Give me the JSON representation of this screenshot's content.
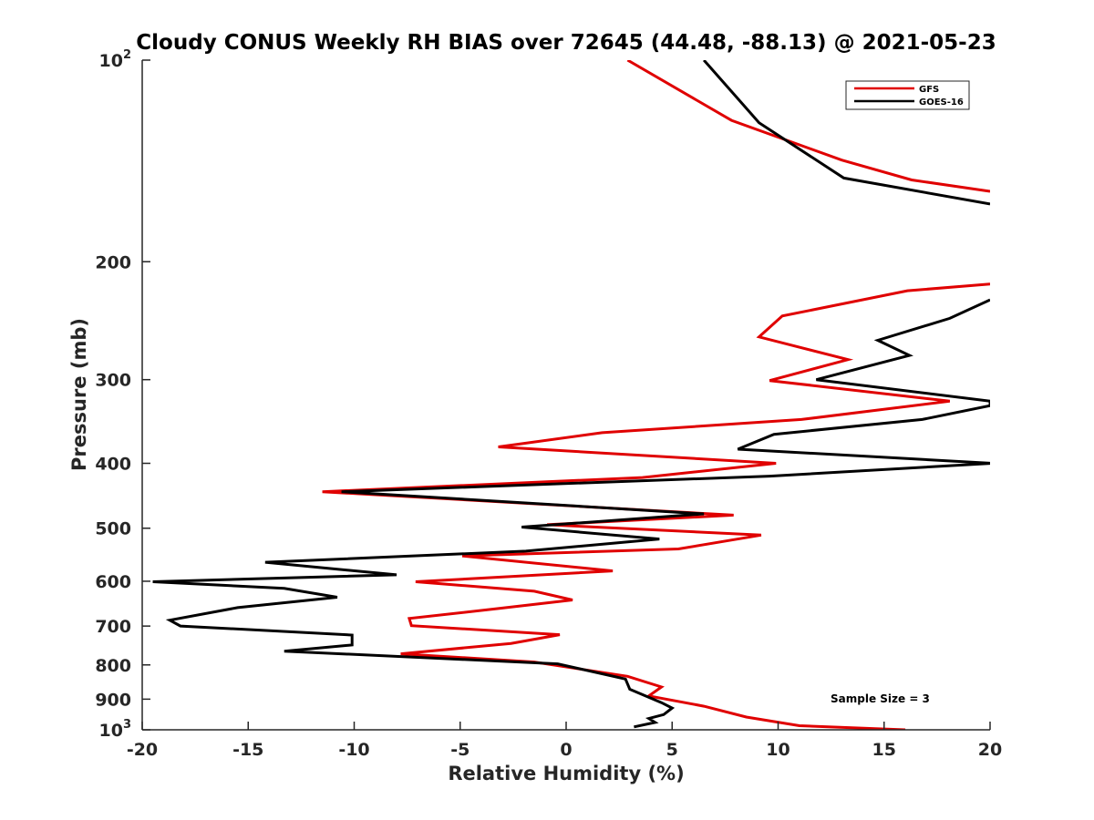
{
  "chart_data": {
    "type": "line",
    "title": "Cloudy CONUS Weekly RH BIAS over 72645 (44.48, -88.13) @ 2021-05-23",
    "xlabel": "Relative Humidity (%)",
    "ylabel": "Pressure (mb)",
    "xlim": [
      -20,
      20
    ],
    "ylim": [
      100,
      1000
    ],
    "y_scale": "log",
    "y_reversed": true,
    "x_ticks": [
      "-20",
      "-15",
      "-10",
      "-5",
      "0",
      "5",
      "10",
      "15",
      "20"
    ],
    "y_ticks": [
      {
        "value": 100,
        "base": "10",
        "exp": "2"
      },
      {
        "value": 200,
        "label": "200"
      },
      {
        "value": 300,
        "label": "300"
      },
      {
        "value": 400,
        "label": "400"
      },
      {
        "value": 500,
        "label": "500"
      },
      {
        "value": 600,
        "label": "600"
      },
      {
        "value": 700,
        "label": "700"
      },
      {
        "value": 800,
        "label": "800"
      },
      {
        "value": 900,
        "label": "900"
      },
      {
        "value": 1000,
        "base": "10",
        "exp": "3"
      }
    ],
    "legend_position": "top-right",
    "annotation": "Sample Size = 3",
    "series": [
      {
        "name": "GFS",
        "color": "#e00000",
        "points": [
          [
            16,
            1000
          ],
          [
            11,
            986
          ],
          [
            8.5,
            957
          ],
          [
            6.5,
            922
          ],
          [
            3.9,
            890
          ],
          [
            4.5,
            863
          ],
          [
            2.9,
            832
          ],
          [
            -1.5,
            792
          ],
          [
            -7.8,
            770
          ],
          [
            -2.6,
            743
          ],
          [
            -0.3,
            721
          ],
          [
            -7.3,
            699
          ],
          [
            -7.4,
            682
          ],
          [
            -3.2,
            659
          ],
          [
            0.3,
            640
          ],
          [
            -1.5,
            621
          ],
          [
            -7.1,
            601
          ],
          [
            2.2,
            579
          ],
          [
            -4.9,
            550
          ],
          [
            5.3,
            537
          ],
          [
            9.2,
            512
          ],
          [
            -0.9,
            494
          ],
          [
            7.9,
            478
          ],
          [
            -11.5,
            441
          ],
          [
            3.6,
            420
          ],
          [
            9.9,
            400
          ],
          [
            -3.2,
            378
          ],
          [
            1.7,
            360
          ],
          [
            11.1,
            344
          ],
          [
            18.1,
            323
          ],
          [
            9.6,
            301
          ],
          [
            13.3,
            280
          ],
          [
            9.1,
            259
          ],
          [
            10.2,
            241
          ],
          [
            16.1,
            221
          ],
          [
            20,
            216
          ]
        ]
      },
      {
        "name": "GOES-16",
        "color": "#000000",
        "points": [
          [
            3.2,
            990
          ],
          [
            4.2,
            975
          ],
          [
            3.9,
            962
          ],
          [
            4.6,
            949
          ],
          [
            5.0,
            928
          ],
          [
            4.5,
            911
          ],
          [
            3.0,
            870
          ],
          [
            2.8,
            840
          ],
          [
            -0.4,
            797
          ],
          [
            -13.3,
            763
          ],
          [
            -10.1,
            747
          ],
          [
            -10.1,
            722
          ],
          [
            -18.2,
            700
          ],
          [
            -18.7,
            686
          ],
          [
            -15.5,
            657
          ],
          [
            -10.8,
            634
          ],
          [
            -13.3,
            615
          ],
          [
            -19.5,
            601
          ],
          [
            -8.0,
            587
          ],
          [
            -14.2,
            562
          ],
          [
            -1.9,
            541
          ],
          [
            4.4,
            519
          ],
          [
            -2.1,
            498
          ],
          [
            6.5,
            476
          ],
          [
            -10.6,
            441
          ],
          [
            9.6,
            418
          ],
          [
            20.1,
            400
          ],
          [
            8.1,
            381
          ],
          [
            9.8,
            362
          ],
          [
            16.8,
            344
          ],
          [
            20,
            328
          ],
          [
            20,
            323
          ],
          [
            11.8,
            300
          ],
          [
            16.2,
            276
          ],
          [
            14.7,
            262
          ],
          [
            18.1,
            243
          ],
          [
            20,
            228
          ]
        ]
      },
      {
        "name": "GFS",
        "color": "#e00000",
        "points": [
          [
            2.9,
            100
          ],
          [
            7.8,
            123
          ],
          [
            13.0,
            141
          ],
          [
            16.3,
            151
          ],
          [
            20,
            157
          ]
        ]
      },
      {
        "name": "GOES-16",
        "color": "#000000",
        "points": [
          [
            6.5,
            100
          ],
          [
            9.1,
            124
          ],
          [
            13.1,
            150
          ],
          [
            20,
            164
          ]
        ]
      }
    ]
  }
}
